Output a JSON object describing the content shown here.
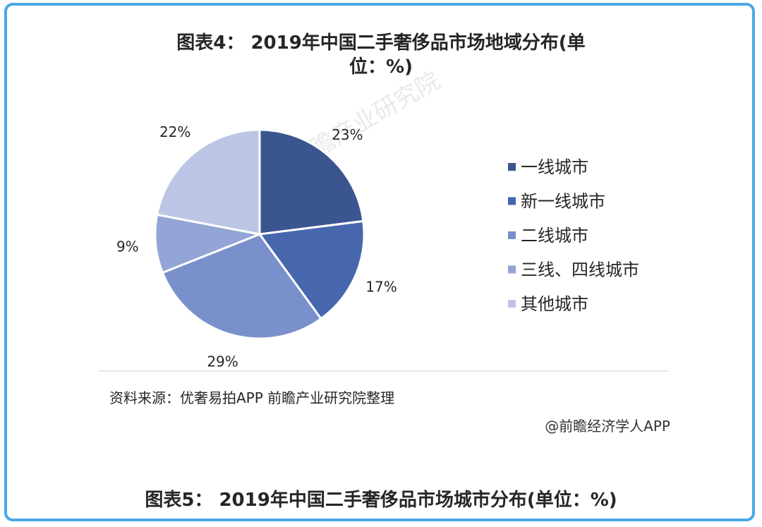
{
  "title": {
    "line1": "图表4： 2019年中国二手奢侈品市场地域分布(单",
    "line2": "位：%)"
  },
  "source_note": "资料来源：优奢易拍APP 前瞻产业研究院整理",
  "credit": "@前瞻经济学人APP",
  "watermark": "前瞻产业研究院",
  "next_title": "图表5： 2019年中国二手奢侈品市场城市分布(单位：%)",
  "colors": {
    "frame": "#4aa8e6"
  },
  "chart_data": {
    "type": "pie",
    "title": "图表4： 2019年中国二手奢侈品市场地域分布(单位：%)",
    "legend_position": "right",
    "categories": [
      "一线城市",
      "新一线城市",
      "二线城市",
      "三线、四线城市",
      "其他城市"
    ],
    "values": [
      23,
      17,
      29,
      9,
      22
    ],
    "labels": [
      "23%",
      "17%",
      "29%",
      "9%",
      "22%"
    ],
    "colors": [
      "#3b5590",
      "#4667ad",
      "#7a90cc",
      "#93a5d6",
      "#bcc6e4"
    ]
  }
}
